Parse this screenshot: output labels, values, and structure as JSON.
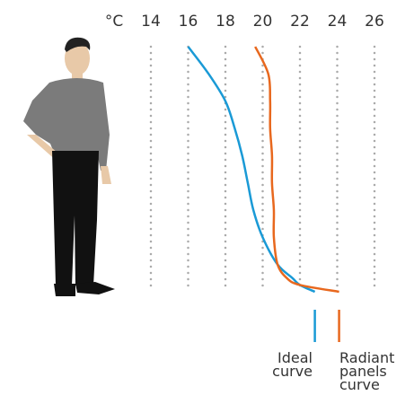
{
  "chart_data": {
    "type": "line",
    "x_label": "°C",
    "xlim": [
      12,
      28
    ],
    "xticks": [
      14,
      16,
      18,
      20,
      22,
      24,
      26
    ],
    "ylim": [
      0,
      1.8
    ],
    "y": [
      1.8,
      1.6,
      1.4,
      1.2,
      1.0,
      0.8,
      0.6,
      0.4,
      0.2,
      0.1,
      0.05,
      0
    ],
    "series": [
      {
        "name": "Ideal curve",
        "color": "#1a9ad6",
        "values": [
          16.0,
          17.1,
          18.0,
          18.5,
          18.9,
          19.2,
          19.5,
          20.0,
          20.8,
          21.6,
          22.0,
          22.8
        ]
      },
      {
        "name": "Radiant panels curve",
        "color": "#e8681e",
        "values": [
          19.6,
          20.3,
          20.4,
          20.4,
          20.5,
          20.5,
          20.6,
          20.6,
          20.8,
          21.3,
          22.0,
          24.1
        ]
      }
    ]
  }
}
